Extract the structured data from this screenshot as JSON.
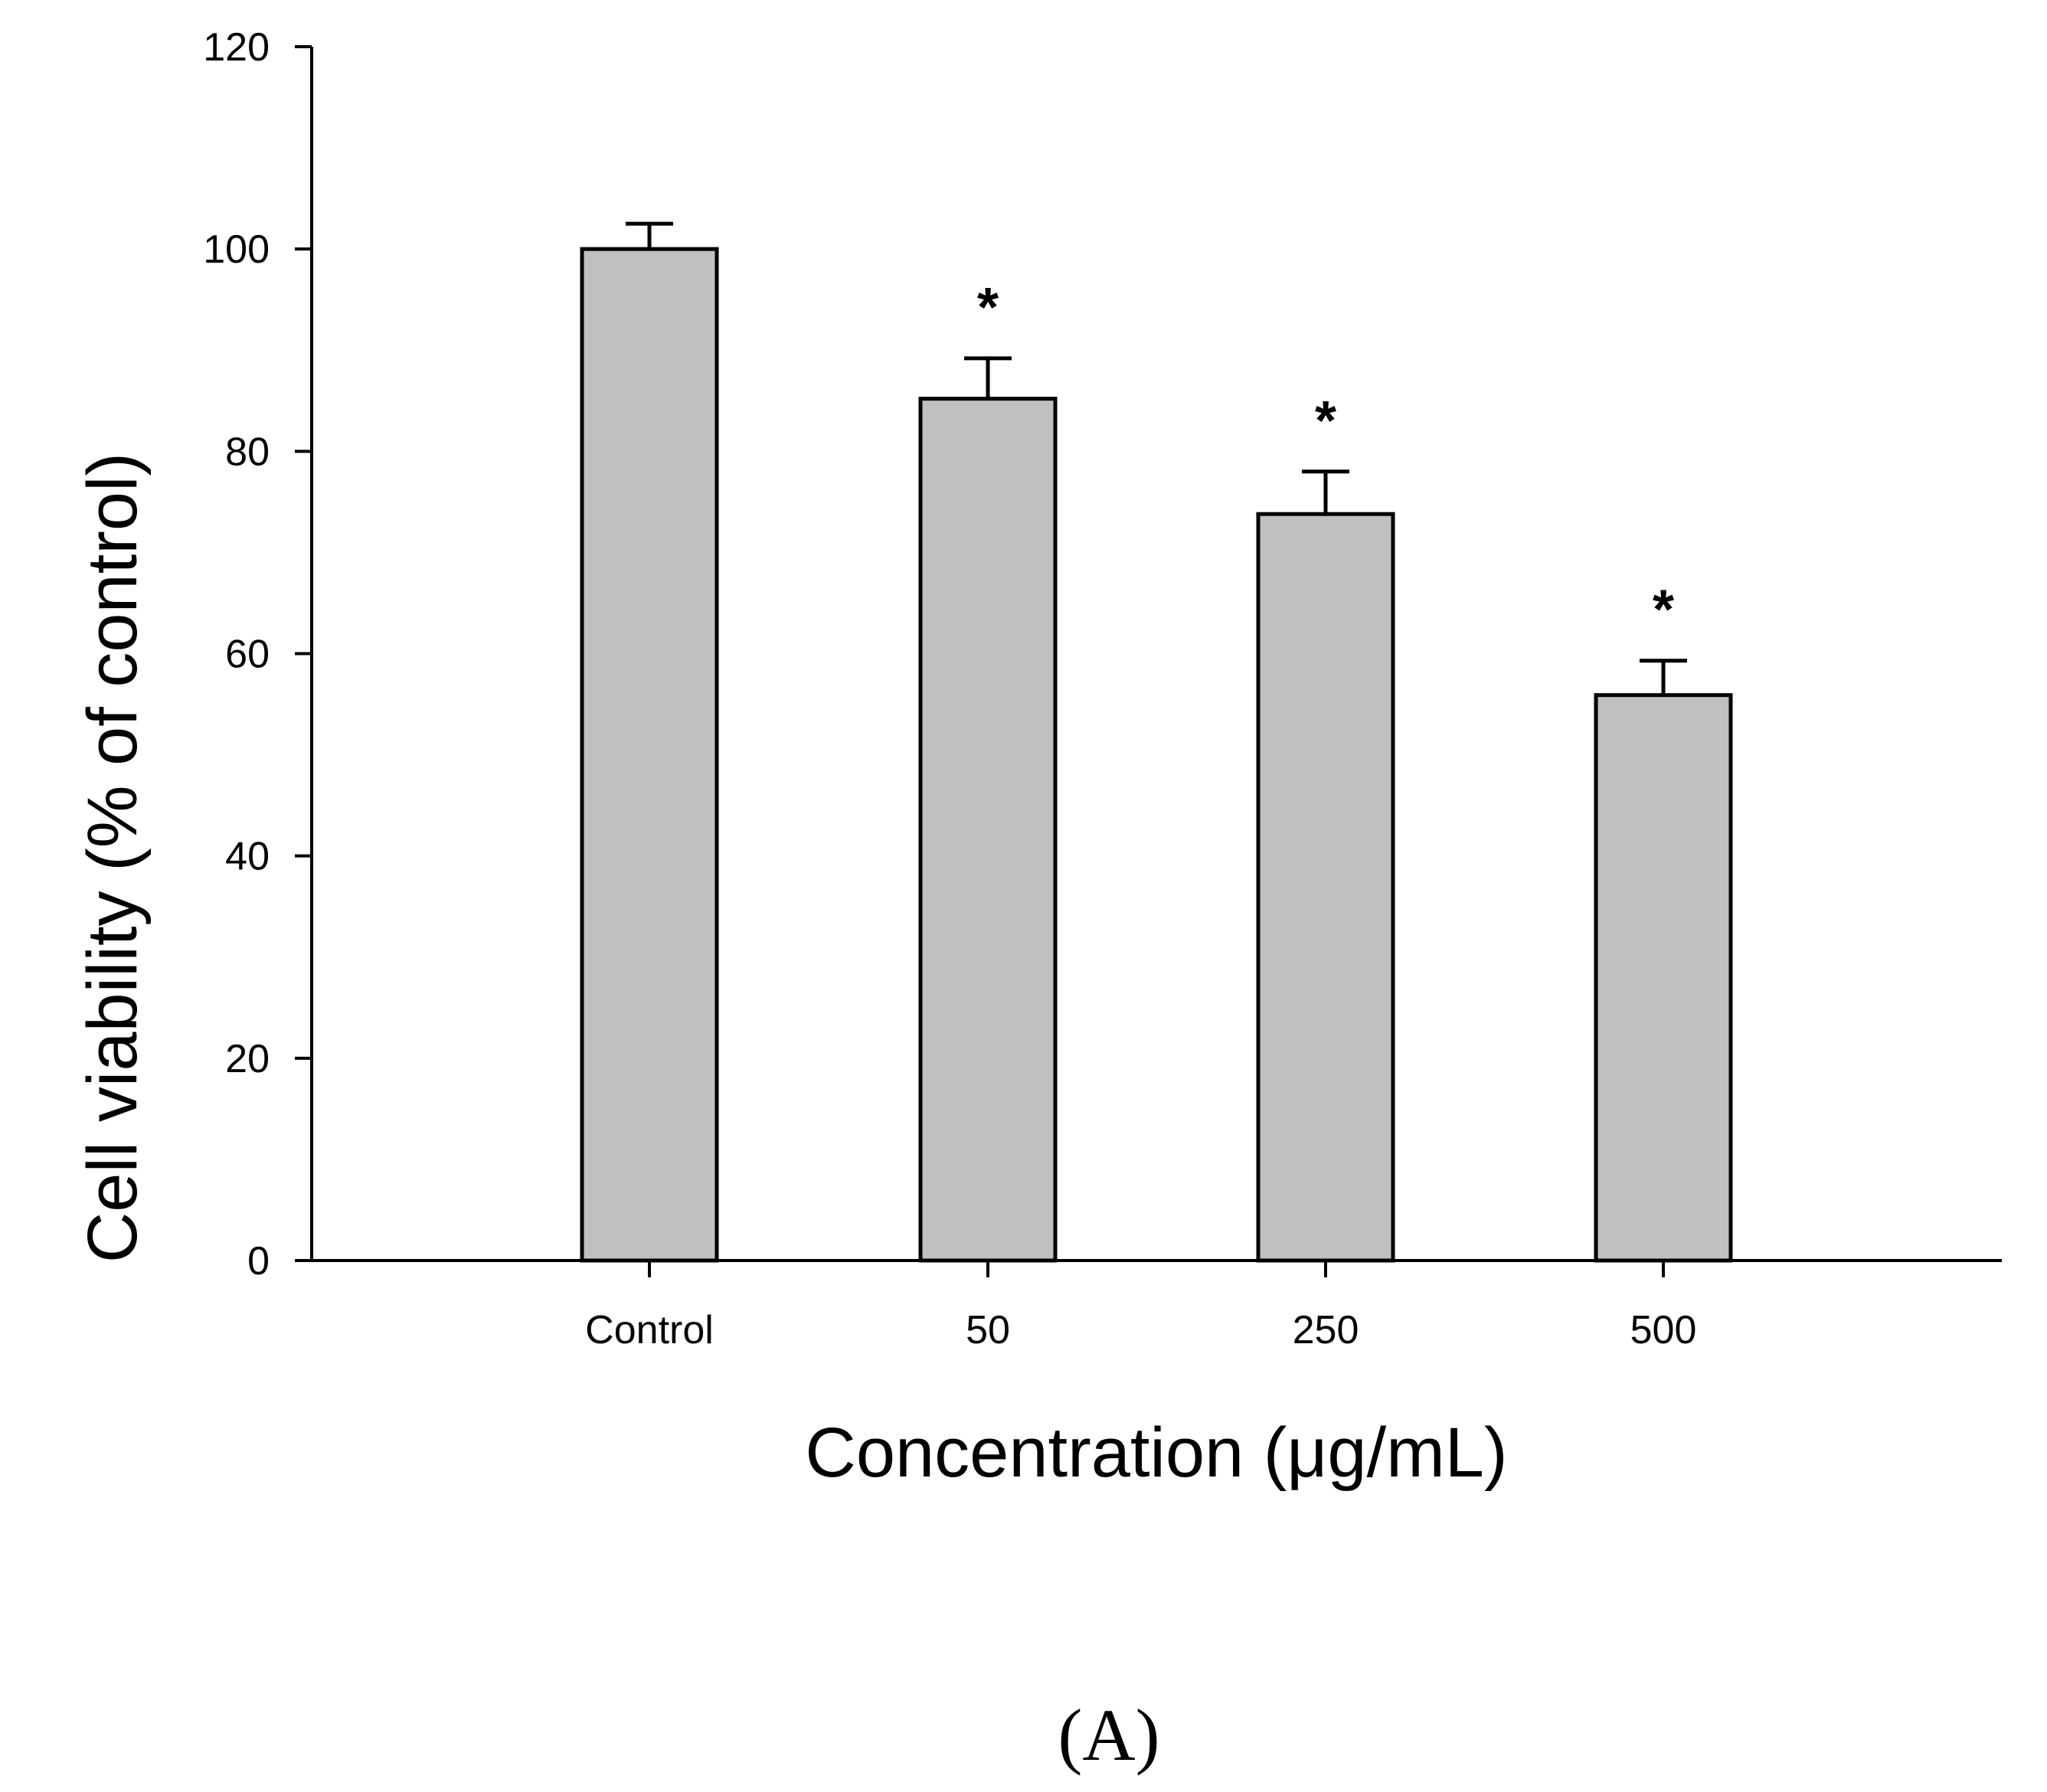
{
  "chart_data": {
    "type": "bar",
    "categories": [
      "Control",
      "50",
      "250",
      "500"
    ],
    "values": [
      100,
      85.2,
      73.8,
      55.9
    ],
    "errors": [
      2.5,
      4.0,
      4.2,
      3.4
    ],
    "significance": [
      "",
      "*",
      "*",
      "*"
    ],
    "xlabel": "Concentration (μg/mL)",
    "ylabel": "Cell viability (% of control)",
    "ylim": [
      0,
      120
    ],
    "yticks": [
      0,
      20,
      40,
      60,
      80,
      100,
      120
    ],
    "bar_color": "#c0c0c0",
    "panel_label": "(A)"
  }
}
